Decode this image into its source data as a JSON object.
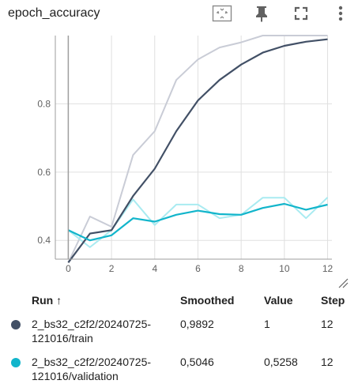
{
  "card": {
    "title": "epoch_accuracy"
  },
  "toolbar": {
    "fit_icon": "fit-to-domain-icon",
    "pin_icon": "pin-icon",
    "fullscreen_icon": "fullscreen-icon",
    "more_icon": "more-vertical-icon"
  },
  "table": {
    "headers": {
      "run": "Run ↑",
      "smoothed": "Smoothed",
      "value": "Value",
      "step": "Step"
    },
    "rows": [
      {
        "run_line1": "2_bs32_c2f2/20240725-",
        "run_line2": "121016/train",
        "smoothed": "0,9892",
        "value": "1",
        "step": "12",
        "color": "#425066"
      },
      {
        "run_line1": "2_bs32_c2f2/20240725-",
        "run_line2": "121016/validation",
        "smoothed": "0,5046",
        "value": "0,5258",
        "step": "12",
        "color": "#12b5cb"
      }
    ]
  },
  "chart_data": {
    "type": "line",
    "xlim": [
      -0.6,
      12.2
    ],
    "ylim": [
      0.345,
      1.0
    ],
    "xticks": [
      0,
      2,
      4,
      6,
      8,
      10,
      12
    ],
    "yticks": [
      0.4,
      0.6,
      0.8
    ],
    "ytick_labels": [
      "0.4",
      "0.6",
      "0.8"
    ],
    "grid": true,
    "series": [
      {
        "color": "#425066",
        "raw_color": "#c9ccd6",
        "x": [
          0,
          1,
          2,
          3,
          4,
          5,
          6,
          7,
          8,
          9,
          10,
          11,
          12
        ],
        "raw": [
          0.335,
          0.47,
          0.44,
          0.65,
          0.72,
          0.87,
          0.93,
          0.965,
          0.98,
          1.0,
          1.0,
          1.0,
          1.0
        ],
        "smoothed": [
          0.335,
          0.42,
          0.43,
          0.53,
          0.61,
          0.72,
          0.81,
          0.87,
          0.915,
          0.95,
          0.97,
          0.982,
          0.9892
        ]
      },
      {
        "color": "#12b5cb",
        "raw_color": "#a9ebf1",
        "x": [
          0,
          1,
          2,
          3,
          4,
          5,
          6,
          7,
          8,
          9,
          10,
          11,
          12
        ],
        "raw": [
          0.43,
          0.38,
          0.43,
          0.52,
          0.445,
          0.505,
          0.505,
          0.465,
          0.475,
          0.525,
          0.525,
          0.465,
          0.5258
        ],
        "smoothed": [
          0.43,
          0.4,
          0.415,
          0.465,
          0.455,
          0.475,
          0.487,
          0.477,
          0.475,
          0.495,
          0.507,
          0.49,
          0.5046
        ]
      }
    ]
  }
}
